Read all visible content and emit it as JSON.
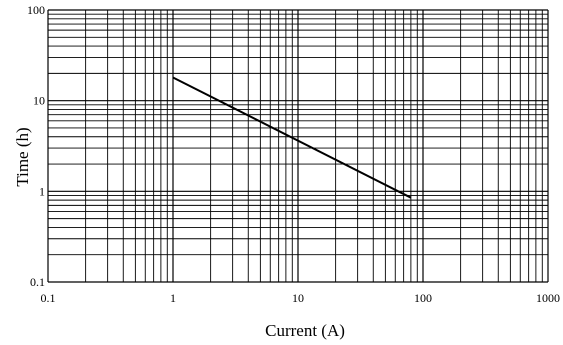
{
  "chart_data": {
    "type": "line",
    "title": "",
    "xlabel": "Current (A)",
    "ylabel": "Time (h)",
    "x_scale": "log",
    "y_scale": "log",
    "xlim": [
      0.1,
      1000
    ],
    "ylim": [
      0.1,
      100
    ],
    "grid": true,
    "x_ticks": [
      "0.1",
      "1",
      "10",
      "100",
      "1000"
    ],
    "y_ticks": [
      "0.1",
      "1",
      "10",
      "100"
    ],
    "series": [
      {
        "x": [
          1,
          80
        ],
        "y": [
          18,
          0.85
        ]
      }
    ],
    "colors": {
      "line": "#000000",
      "grid": "#000000",
      "background": "#ffffff"
    }
  }
}
